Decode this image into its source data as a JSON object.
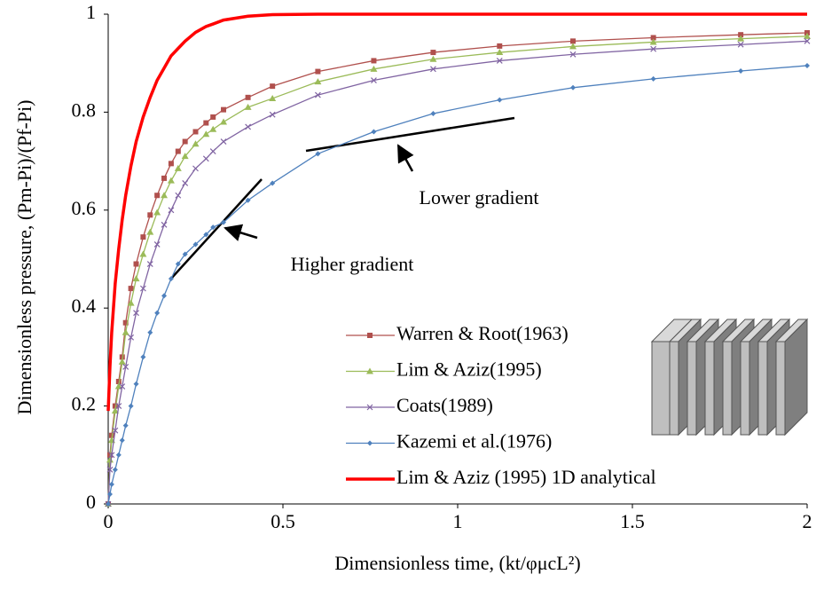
{
  "chart_data": {
    "type": "line",
    "xlabel": "Dimensionless time, (kt/φμcL²)",
    "ylabel": "Dimensionless pressure, (Pm-Pi)/(Pf-Pi)",
    "x": [
      0,
      0.005,
      0.01,
      0.02,
      0.03,
      0.04,
      0.05,
      0.065,
      0.08,
      0.1,
      0.12,
      0.14,
      0.16,
      0.18,
      0.2,
      0.22,
      0.25,
      0.28,
      0.3,
      0.33,
      0.4,
      0.47,
      0.6,
      0.76,
      0.93,
      1.12,
      1.33,
      1.56,
      1.81,
      2.0
    ],
    "xlim": [
      0,
      2
    ],
    "xticks": [
      0,
      0.5,
      1,
      1.5,
      2
    ],
    "ylim": [
      0,
      1
    ],
    "yticks": [
      0,
      0.2,
      0.4,
      0.6,
      0.8,
      1
    ],
    "legend": "lower right",
    "annotations": [
      "Lower gradient",
      "Higher gradient"
    ],
    "series": [
      {
        "name": "Warren & Root(1963)",
        "color": "#b0504d",
        "marker": "square",
        "values": [
          0,
          0.1,
          0.14,
          0.2,
          0.25,
          0.3,
          0.37,
          0.44,
          0.49,
          0.545,
          0.59,
          0.63,
          0.665,
          0.695,
          0.72,
          0.74,
          0.76,
          0.778,
          0.79,
          0.805,
          0.83,
          0.853,
          0.883,
          0.905,
          0.922,
          0.935,
          0.945,
          0.952,
          0.958,
          0.962
        ]
      },
      {
        "name": "Lim & Aziz(1995)",
        "color": "#9bbb59",
        "marker": "triangle",
        "values": [
          0,
          0.09,
          0.13,
          0.19,
          0.24,
          0.29,
          0.35,
          0.41,
          0.46,
          0.51,
          0.555,
          0.595,
          0.63,
          0.66,
          0.685,
          0.71,
          0.735,
          0.755,
          0.765,
          0.78,
          0.81,
          0.828,
          0.862,
          0.888,
          0.908,
          0.922,
          0.934,
          0.943,
          0.95,
          0.955
        ]
      },
      {
        "name": "Coats(1989)",
        "color": "#8064a2",
        "marker": "x",
        "values": [
          0,
          0.07,
          0.1,
          0.15,
          0.2,
          0.24,
          0.28,
          0.34,
          0.39,
          0.44,
          0.49,
          0.53,
          0.57,
          0.6,
          0.63,
          0.655,
          0.685,
          0.705,
          0.72,
          0.74,
          0.77,
          0.795,
          0.835,
          0.865,
          0.888,
          0.905,
          0.918,
          0.929,
          0.938,
          0.945
        ]
      },
      {
        "name": "Kazemi et al.(1976)",
        "color": "#4f81bd",
        "marker": "diamond",
        "values": [
          0,
          0.02,
          0.04,
          0.07,
          0.1,
          0.13,
          0.16,
          0.2,
          0.245,
          0.3,
          0.35,
          0.39,
          0.425,
          0.46,
          0.49,
          0.51,
          0.53,
          0.55,
          0.565,
          0.575,
          0.62,
          0.655,
          0.715,
          0.76,
          0.797,
          0.825,
          0.85,
          0.868,
          0.884,
          0.895
        ]
      },
      {
        "name": "Lim & Aziz (1995) 1D analytical",
        "color": "#ff0000",
        "marker": "none",
        "values": [
          0.19,
          0.28,
          0.35,
          0.45,
          0.52,
          0.58,
          0.63,
          0.69,
          0.74,
          0.79,
          0.83,
          0.865,
          0.89,
          0.915,
          0.93,
          0.945,
          0.963,
          0.975,
          0.98,
          0.988,
          0.996,
          0.999,
          1,
          1,
          1,
          1,
          1,
          1,
          1,
          1
        ]
      }
    ]
  }
}
